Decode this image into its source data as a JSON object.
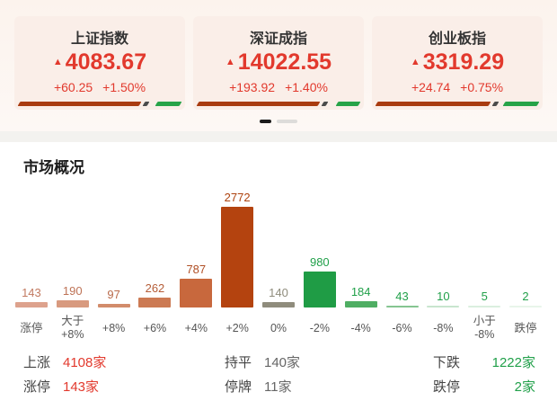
{
  "colors": {
    "up_red": "#e2392d",
    "down_green": "#21a04a",
    "flat_gray": "#666666",
    "ratio_up": "#a93b10",
    "ratio_down": "#27a348",
    "ratio_separator": "#4a4a4a",
    "card_bg": "#faeee8"
  },
  "carousel": {
    "cards": [
      {
        "name": "上证指数",
        "arrow": "▲",
        "price": "4083.67",
        "change": "+60.25",
        "pct": "+1.50%",
        "up_ratio": 75,
        "down_ratio": 15
      },
      {
        "name": "深证成指",
        "arrow": "▲",
        "price": "14022.55",
        "change": "+193.92",
        "pct": "+1.40%",
        "up_ratio": 75,
        "down_ratio": 14
      },
      {
        "name": "创业板指",
        "arrow": "▲",
        "price": "3319.29",
        "change": "+24.74",
        "pct": "+0.75%",
        "up_ratio": 70,
        "down_ratio": 21
      }
    ],
    "pager": {
      "pages": 2,
      "active": 0
    }
  },
  "section_title": "市场概况",
  "chart_data": {
    "type": "bar",
    "title": "市场概况",
    "xlabel": "",
    "ylabel": "",
    "grid": false,
    "legend": false,
    "ylim": [
      0,
      2772
    ],
    "categories": [
      "涨停",
      "大于\n+8%",
      "+8%",
      "+6%",
      "+4%",
      "+2%",
      "0%",
      "-2%",
      "-4%",
      "-6%",
      "-8%",
      "小于\n-8%",
      "跌停"
    ],
    "values": [
      143,
      190,
      97,
      262,
      787,
      2772,
      140,
      980,
      184,
      43,
      10,
      5,
      2
    ],
    "bar_colors": [
      "#dda28d",
      "#d89a7f",
      "#d28c6b",
      "#cc7a53",
      "#c8683d",
      "#b4430f",
      "#8f8c7c",
      "#1f9c45",
      "#4fae63",
      "#85c591",
      "#c8e5ce",
      "#dbefdf",
      "#e8f5ea"
    ],
    "label_colors": [
      "#c27a61",
      "#be7356",
      "#b96a4a",
      "#b55d38",
      "#b04f25",
      "#ae430f",
      "#8f8c7c",
      "#21a04a",
      "#21a04a",
      "#21a04a",
      "#21a04a",
      "#21a04a",
      "#21a04a"
    ]
  },
  "stats": {
    "columns": [
      {
        "align": "left",
        "value_color": "#e2392d",
        "rows": [
          {
            "label": "上涨",
            "value": "4108家"
          },
          {
            "label": "涨停",
            "value": "143家"
          }
        ]
      },
      {
        "align": "left",
        "value_color": "#666666",
        "rows": [
          {
            "label": "持平",
            "value": "140家"
          },
          {
            "label": "停牌",
            "value": "11家"
          }
        ]
      },
      {
        "align": "right",
        "value_color": "#21a04a",
        "rows": [
          {
            "label": "下跌",
            "value": "1222家"
          },
          {
            "label": "跌停",
            "value": "2家"
          }
        ]
      }
    ]
  }
}
